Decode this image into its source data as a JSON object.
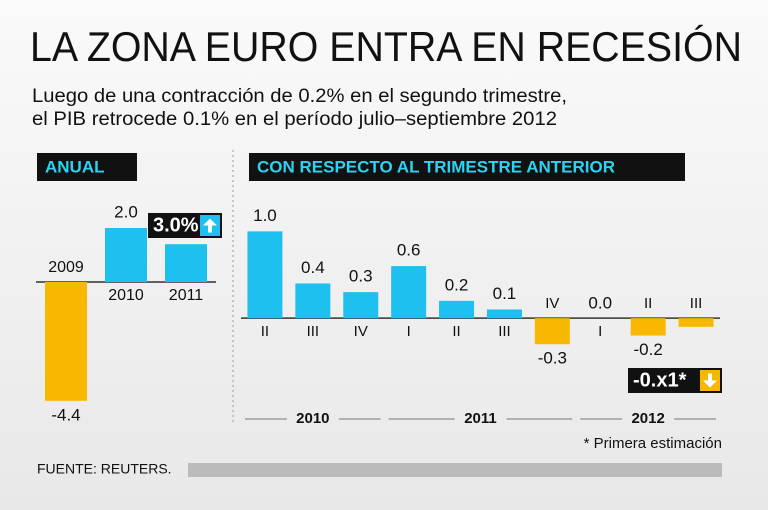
{
  "title": "LA ZONA EURO ENTRA EN RECESIÓN",
  "subtitle": [
    "Luego de una contracción de 0.2% en el segundo trimestre,",
    "el PIB retrocede 0.1% en el período julio–septiembre 2012"
  ],
  "chart_data": [
    {
      "type": "bar",
      "title": "ANUAL",
      "categories": [
        "2009",
        "2010",
        "2011"
      ],
      "values": [
        -4.4,
        2.0,
        1.4
      ],
      "value_labels": [
        "-4.4",
        "2.0",
        null
      ],
      "color_positive": "#1ec0f0",
      "color_negative": "#f9b800",
      "ylim": [
        -5,
        3
      ],
      "annotation": "3.0%"
    },
    {
      "type": "bar",
      "title": "CON RESPECTO AL TRIMESTRE ANTERIOR",
      "categories": [
        "II",
        "III",
        "IV",
        "I",
        "II",
        "III",
        "IV",
        "I",
        "II",
        "III"
      ],
      "values": [
        1.0,
        0.4,
        0.3,
        0.6,
        0.2,
        0.1,
        -0.3,
        0.0,
        -0.2,
        -0.1
      ],
      "value_labels": [
        "1.0",
        "0.4",
        "0.3",
        "0.6",
        "0.2",
        "0.1",
        "-0.3",
        "0.0",
        "-0.2",
        null
      ],
      "x_groups": [
        {
          "label": "2010",
          "span": 3
        },
        {
          "label": "2011",
          "span": 4
        },
        {
          "label": "2012",
          "span": 3
        }
      ],
      "color_positive": "#1ec0f0",
      "color_negative": "#f9b800",
      "ylim": [
        -1,
        1.2
      ],
      "annotation": "-0.x1*"
    }
  ],
  "footnote": "* Primera estimación",
  "source": "FUENTE: REUTERS."
}
